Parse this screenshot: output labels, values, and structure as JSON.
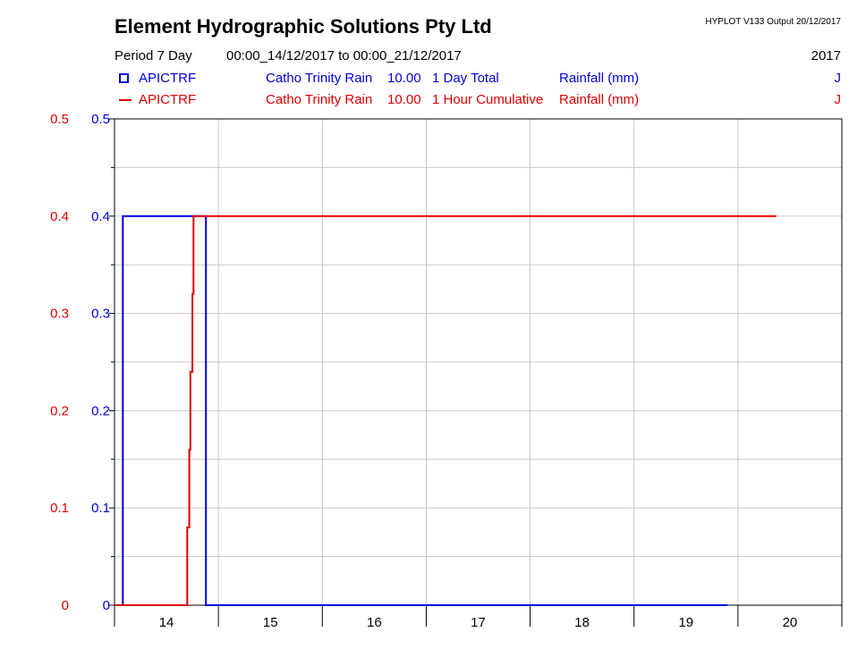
{
  "header": {
    "title": "Element Hydrographic Solutions Pty Ltd",
    "version": "HYPLOT V133  Output 20/12/2017",
    "period": "Period  7 Day",
    "range": "00:00_14/12/2017 to 00:00_21/12/2017",
    "year": "2017"
  },
  "legend": [
    {
      "marker": "square",
      "site": "APICTRF",
      "name": "Catho Trinity Rain",
      "code": "10.00",
      "desc": "1 Day Total",
      "var": "Rainfall (mm)",
      "flag": "J",
      "color": "#0000dd"
    },
    {
      "marker": "line",
      "site": "APICTRF",
      "name": "Catho Trinity Rain",
      "code": "10.00",
      "desc": "1 Hour Cumulative",
      "var": "Rainfall (mm)",
      "flag": "J",
      "color": "#dd0000"
    }
  ],
  "chart_data": {
    "type": "line",
    "x_ticks": [
      "14",
      "15",
      "16",
      "17",
      "18",
      "19",
      "20"
    ],
    "xlim": [
      14,
      21
    ],
    "ylim": [
      0,
      0.5
    ],
    "y_ticks": [
      0,
      0.1,
      0.2,
      0.3,
      0.4,
      0.5
    ],
    "y_tick_labels": [
      "0",
      "0.1",
      "0.2",
      "0.3",
      "0.4",
      "0.5"
    ],
    "grid": true,
    "series": [
      {
        "name": "1 Day Total",
        "color": "#0000dd",
        "style": "step",
        "points": [
          [
            14.08,
            0
          ],
          [
            14.08,
            0.4
          ],
          [
            14.88,
            0.4
          ],
          [
            14.88,
            0
          ],
          [
            19.1,
            0
          ],
          [
            19.9,
            0
          ]
        ]
      },
      {
        "name": "1 Hour Cumulative",
        "color": "#dd0000",
        "style": "step",
        "points": [
          [
            14.0,
            0
          ],
          [
            14.7,
            0
          ],
          [
            14.7,
            0.08
          ],
          [
            14.72,
            0.08
          ],
          [
            14.72,
            0.16
          ],
          [
            14.73,
            0.16
          ],
          [
            14.73,
            0.24
          ],
          [
            14.75,
            0.24
          ],
          [
            14.75,
            0.32
          ],
          [
            14.76,
            0.32
          ],
          [
            14.76,
            0.4
          ],
          [
            20.37,
            0.4
          ]
        ]
      }
    ]
  }
}
